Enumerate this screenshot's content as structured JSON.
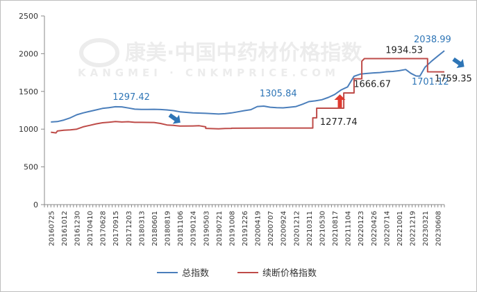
{
  "chart_data": {
    "type": "line",
    "title": "",
    "xlabel": "",
    "ylabel": "",
    "ylim": [
      0,
      2500
    ],
    "yticks": [
      0,
      500,
      1000,
      1500,
      2000,
      2500
    ],
    "grid": false,
    "legend_position": "bottom",
    "watermark": {
      "cn": "康美·中国中药材价格指数",
      "en": "KANGMEI · CNKMPRICE.COM"
    },
    "x_tick_labels": [
      "20160725",
      "20161012",
      "20161230",
      "20170410",
      "20170628",
      "20170915",
      "20171203",
      "20180313",
      "20180601",
      "20180819",
      "20181106",
      "20190124",
      "20190503",
      "20190721",
      "20191008",
      "20191226",
      "20200419",
      "20200707",
      "20200924",
      "20201212",
      "20210311",
      "20210530",
      "20210817",
      "20211104",
      "20220123",
      "20220426",
      "20220714",
      "20221001",
      "20221219",
      "20230321",
      "20230608"
    ],
    "series": [
      {
        "name": "总指数",
        "color": "#4a7ebb",
        "points": [
          [
            0,
            1095
          ],
          [
            0.5,
            1100
          ],
          [
            1,
            1120
          ],
          [
            1.5,
            1150
          ],
          [
            2,
            1190
          ],
          [
            2.5,
            1215
          ],
          [
            3,
            1235
          ],
          [
            3.5,
            1255
          ],
          [
            4,
            1275
          ],
          [
            4.5,
            1285
          ],
          [
            5,
            1297
          ],
          [
            5.5,
            1295
          ],
          [
            6,
            1280
          ],
          [
            6.5,
            1265
          ],
          [
            7,
            1262
          ],
          [
            7.5,
            1262
          ],
          [
            8,
            1263
          ],
          [
            8.5,
            1260
          ],
          [
            9,
            1255
          ],
          [
            9.5,
            1245
          ],
          [
            10,
            1230
          ],
          [
            11,
            1215
          ],
          [
            12,
            1210
          ],
          [
            13,
            1200
          ],
          [
            13.5,
            1205
          ],
          [
            14,
            1215
          ],
          [
            14.5,
            1230
          ],
          [
            15,
            1245
          ],
          [
            15.5,
            1258
          ],
          [
            16,
            1300
          ],
          [
            16.5,
            1305
          ],
          [
            17,
            1290
          ],
          [
            17.5,
            1285
          ],
          [
            18,
            1282
          ],
          [
            18.5,
            1290
          ],
          [
            19,
            1300
          ],
          [
            19.5,
            1330
          ],
          [
            20,
            1365
          ],
          [
            20.5,
            1375
          ],
          [
            21,
            1390
          ],
          [
            21.5,
            1420
          ],
          [
            22,
            1460
          ],
          [
            22.5,
            1520
          ],
          [
            23,
            1560
          ],
          [
            23.5,
            1700
          ],
          [
            24,
            1730
          ],
          [
            24.5,
            1738
          ],
          [
            25,
            1745
          ],
          [
            25.5,
            1750
          ],
          [
            26,
            1760
          ],
          [
            26.5,
            1765
          ],
          [
            27,
            1775
          ],
          [
            27.5,
            1790
          ],
          [
            27.9,
            1740
          ],
          [
            28.3,
            1705
          ],
          [
            28.6,
            1702
          ],
          [
            29,
            1820
          ],
          [
            29.5,
            1900
          ],
          [
            30,
            1970
          ],
          [
            30.5,
            2039
          ]
        ]
      },
      {
        "name": "续断价格指数",
        "color": "#be4b48",
        "points": [
          [
            0,
            960
          ],
          [
            0.4,
            950
          ],
          [
            0.5,
            975
          ],
          [
            1,
            985
          ],
          [
            1.5,
            990
          ],
          [
            2,
            1000
          ],
          [
            2.5,
            1030
          ],
          [
            3,
            1050
          ],
          [
            3.5,
            1070
          ],
          [
            4,
            1085
          ],
          [
            4.5,
            1092
          ],
          [
            5,
            1100
          ],
          [
            5.5,
            1095
          ],
          [
            6,
            1098
          ],
          [
            6.5,
            1090
          ],
          [
            7,
            1090
          ],
          [
            8,
            1088
          ],
          [
            8.5,
            1075
          ],
          [
            9,
            1055
          ],
          [
            9.5,
            1050
          ],
          [
            10,
            1040
          ],
          [
            11,
            1042
          ],
          [
            11.5,
            1045
          ],
          [
            12,
            1030
          ],
          [
            12,
            1010
          ],
          [
            13,
            1005
          ],
          [
            13.5,
            1008
          ],
          [
            14,
            1010
          ],
          [
            14,
            1012
          ],
          [
            17,
            1015
          ],
          [
            19,
            1015
          ],
          [
            20.3,
            1015
          ],
          [
            20.3,
            1150
          ],
          [
            20.6,
            1150
          ],
          [
            20.6,
            1278
          ],
          [
            22.7,
            1278
          ],
          [
            22.7,
            1480
          ],
          [
            23.5,
            1480
          ],
          [
            23.5,
            1667
          ],
          [
            24.1,
            1667
          ],
          [
            24.1,
            1900
          ],
          [
            24.3,
            1935
          ],
          [
            29,
            1935
          ],
          [
            29.2,
            1935
          ],
          [
            29.2,
            1760
          ],
          [
            30.5,
            1759
          ]
        ]
      }
    ],
    "annotations": [
      {
        "text": "1297.42",
        "x": 5.0,
        "y": 1297,
        "color": "#2e75b6"
      },
      {
        "text": "1305.84",
        "x": 16.5,
        "y": 1305,
        "color": "#2e75b6"
      },
      {
        "text": "1277.74",
        "x": 21.4,
        "y": 1278,
        "color": "#222222"
      },
      {
        "text": "1666.67",
        "x": 24.0,
        "y": 1667,
        "color": "#222222"
      },
      {
        "text": "1934.53",
        "x": 26.8,
        "y": 1935,
        "color": "#222222"
      },
      {
        "text": "1701.12",
        "x": 28.5,
        "y": 1701,
        "color": "#2e75b6"
      },
      {
        "text": "2038.99",
        "x": 30.5,
        "y": 2039,
        "color": "#2e75b6"
      },
      {
        "text": "1759.35",
        "x": 30.5,
        "y": 1759,
        "color": "#222222"
      }
    ],
    "arrows": [
      {
        "direction": "down-right",
        "x": 9.6,
        "y": 1140,
        "color": "#2e75b6"
      },
      {
        "direction": "up",
        "x": 22.4,
        "y": 1370,
        "color": "#e03a2f"
      },
      {
        "direction": "down-right",
        "x": 31.6,
        "y": 1880,
        "color": "#2e75b6"
      }
    ]
  }
}
